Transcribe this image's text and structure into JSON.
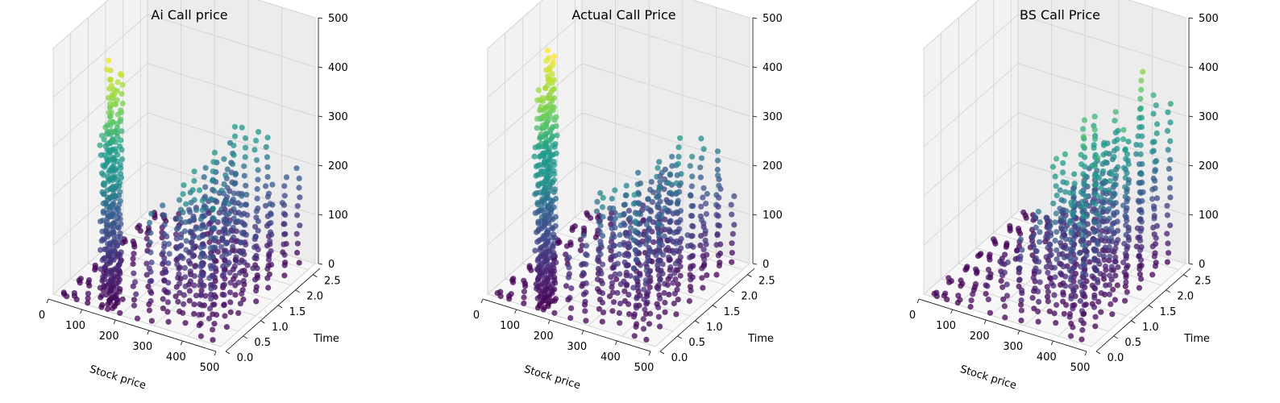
{
  "chart_data": [
    {
      "type": "scatter",
      "title": "Ai Call price",
      "xlabel": "Stock price",
      "ylabel": "Time",
      "zlabel": "",
      "x_ticks": [
        "0",
        "100",
        "200",
        "300",
        "400",
        "500"
      ],
      "y_ticks": [
        "0.0",
        "0.5",
        "1.0",
        "1.5",
        "2.0",
        "2.5"
      ],
      "z_ticks": [
        "0",
        "100",
        "200",
        "300",
        "400",
        "500"
      ],
      "xlim": [
        0,
        500
      ],
      "ylim": [
        0,
        2.7
      ],
      "zlim": [
        0,
        500
      ],
      "colormap": "viridis",
      "grid": true,
      "columns": [
        {
          "stock_price": 30,
          "time_min": 0.05,
          "time_max": 2.6,
          "z_max": 10
        },
        {
          "stock_price": 60,
          "time_min": 0.05,
          "time_max": 2.6,
          "z_max": 12
        },
        {
          "stock_price": 100,
          "time_min": 0.05,
          "time_max": 2.6,
          "z_max": 25
        },
        {
          "stock_price": 140,
          "time_min": 0.05,
          "time_max": 0.4,
          "z_max": 520
        },
        {
          "stock_price": 160,
          "time_min": 0.05,
          "time_max": 0.4,
          "z_max": 480
        },
        {
          "stock_price": 190,
          "time_min": 0.05,
          "time_max": 2.6,
          "z_max": 60
        },
        {
          "stock_price": 240,
          "time_min": 0.05,
          "time_max": 2.6,
          "z_max": 120
        },
        {
          "stock_price": 280,
          "time_min": 0.1,
          "time_max": 2.4,
          "z_max": 230
        },
        {
          "stock_price": 320,
          "time_min": 0.2,
          "time_max": 2.2,
          "z_max": 260
        },
        {
          "stock_price": 360,
          "time_min": 0.3,
          "time_max": 2.0,
          "z_max": 330
        },
        {
          "stock_price": 400,
          "time_min": 0.4,
          "time_max": 2.3,
          "z_max": 300
        },
        {
          "stock_price": 430,
          "time_min": 0.1,
          "time_max": 2.5,
          "z_max": 250
        },
        {
          "stock_price": 460,
          "time_min": 0.1,
          "time_max": 2.6,
          "z_max": 200
        }
      ]
    },
    {
      "type": "scatter",
      "title": "Actual Call Price",
      "xlabel": "Stock price",
      "ylabel": "Time",
      "zlabel": "",
      "x_ticks": [
        "0",
        "100",
        "200",
        "300",
        "400",
        "500"
      ],
      "y_ticks": [
        "0.0",
        "0.5",
        "1.0",
        "1.5",
        "2.0",
        "2.5"
      ],
      "z_ticks": [
        "0",
        "100",
        "200",
        "300",
        "400",
        "500"
      ],
      "xlim": [
        0,
        500
      ],
      "ylim": [
        0,
        2.7
      ],
      "zlim": [
        0,
        500
      ],
      "colormap": "viridis",
      "grid": true,
      "columns": [
        {
          "stock_price": 30,
          "time_min": 0.05,
          "time_max": 2.6,
          "z_max": 10
        },
        {
          "stock_price": 60,
          "time_min": 0.05,
          "time_max": 2.6,
          "z_max": 12
        },
        {
          "stock_price": 100,
          "time_min": 0.05,
          "time_max": 2.6,
          "z_max": 25
        },
        {
          "stock_price": 140,
          "time_min": 0.05,
          "time_max": 0.4,
          "z_max": 520
        },
        {
          "stock_price": 160,
          "time_min": 0.05,
          "time_max": 0.4,
          "z_max": 500
        },
        {
          "stock_price": 190,
          "time_min": 0.05,
          "time_max": 2.6,
          "z_max": 60
        },
        {
          "stock_price": 240,
          "time_min": 0.05,
          "time_max": 2.6,
          "z_max": 140
        },
        {
          "stock_price": 280,
          "time_min": 0.1,
          "time_max": 2.4,
          "z_max": 240
        },
        {
          "stock_price": 320,
          "time_min": 0.2,
          "time_max": 2.2,
          "z_max": 270
        },
        {
          "stock_price": 360,
          "time_min": 0.3,
          "time_max": 2.0,
          "z_max": 320
        },
        {
          "stock_price": 400,
          "time_min": 0.4,
          "time_max": 2.3,
          "z_max": 290
        },
        {
          "stock_price": 430,
          "time_min": 0.1,
          "time_max": 2.5,
          "z_max": 260
        },
        {
          "stock_price": 460,
          "time_min": 0.1,
          "time_max": 2.6,
          "z_max": 210
        }
      ]
    },
    {
      "type": "scatter",
      "title": "BS Call Price",
      "xlabel": "Stock price",
      "ylabel": "Time",
      "zlabel": "",
      "x_ticks": [
        "0",
        "100",
        "200",
        "300",
        "400",
        "500"
      ],
      "y_ticks": [
        "0.0",
        "0.5",
        "1.0",
        "1.5",
        "2.0",
        "2.5"
      ],
      "z_ticks": [
        "0",
        "100",
        "200",
        "300",
        "400",
        "500"
      ],
      "xlim": [
        0,
        500
      ],
      "ylim": [
        0,
        2.7
      ],
      "zlim": [
        0,
        500
      ],
      "colormap": "viridis",
      "grid": true,
      "columns": [
        {
          "stock_price": 30,
          "time_min": 0.05,
          "time_max": 2.6,
          "z_max": 10
        },
        {
          "stock_price": 60,
          "time_min": 0.05,
          "time_max": 2.6,
          "z_max": 12
        },
        {
          "stock_price": 100,
          "time_min": 0.05,
          "time_max": 2.6,
          "z_max": 20
        },
        {
          "stock_price": 140,
          "time_min": 0.05,
          "time_max": 2.6,
          "z_max": 40
        },
        {
          "stock_price": 190,
          "time_min": 0.05,
          "time_max": 2.6,
          "z_max": 80
        },
        {
          "stock_price": 240,
          "time_min": 0.05,
          "time_max": 2.6,
          "z_max": 130
        },
        {
          "stock_price": 280,
          "time_min": 0.1,
          "time_max": 2.4,
          "z_max": 200
        },
        {
          "stock_price": 320,
          "time_min": 0.2,
          "time_max": 2.2,
          "z_max": 280
        },
        {
          "stock_price": 360,
          "time_min": 0.3,
          "time_max": 2.0,
          "z_max": 360
        },
        {
          "stock_price": 400,
          "time_min": 0.4,
          "time_max": 2.3,
          "z_max": 400
        },
        {
          "stock_price": 430,
          "time_min": 0.1,
          "time_max": 2.5,
          "z_max": 420
        },
        {
          "stock_price": 460,
          "time_min": 0.1,
          "time_max": 2.6,
          "z_max": 380
        }
      ]
    }
  ]
}
